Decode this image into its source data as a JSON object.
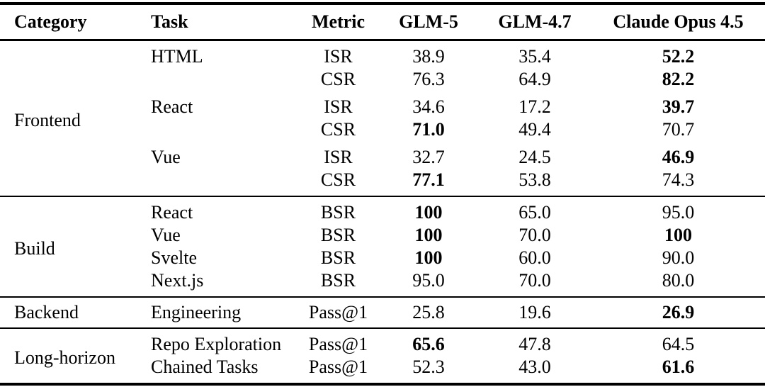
{
  "table": {
    "headers": {
      "category": "Category",
      "task": "Task",
      "metric": "Metric",
      "glm5": "GLM-5",
      "glm47": "GLM-4.7",
      "opus": "Claude Opus 4.5"
    },
    "sections": [
      {
        "category": "Frontend",
        "tasks": [
          {
            "name": "HTML",
            "rows": [
              {
                "metric": "ISR",
                "glm5": {
                  "v": "38.9",
                  "b": false
                },
                "glm47": {
                  "v": "35.4",
                  "b": false
                },
                "opus": {
                  "v": "52.2",
                  "b": true
                }
              },
              {
                "metric": "CSR",
                "glm5": {
                  "v": "76.3",
                  "b": false
                },
                "glm47": {
                  "v": "64.9",
                  "b": false
                },
                "opus": {
                  "v": "82.2",
                  "b": true
                }
              }
            ]
          },
          {
            "name": "React",
            "rows": [
              {
                "metric": "ISR",
                "glm5": {
                  "v": "34.6",
                  "b": false
                },
                "glm47": {
                  "v": "17.2",
                  "b": false
                },
                "opus": {
                  "v": "39.7",
                  "b": true
                }
              },
              {
                "metric": "CSR",
                "glm5": {
                  "v": "71.0",
                  "b": true
                },
                "glm47": {
                  "v": "49.4",
                  "b": false
                },
                "opus": {
                  "v": "70.7",
                  "b": false
                }
              }
            ]
          },
          {
            "name": "Vue",
            "rows": [
              {
                "metric": "ISR",
                "glm5": {
                  "v": "32.7",
                  "b": false
                },
                "glm47": {
                  "v": "24.5",
                  "b": false
                },
                "opus": {
                  "v": "46.9",
                  "b": true
                }
              },
              {
                "metric": "CSR",
                "glm5": {
                  "v": "77.1",
                  "b": true
                },
                "glm47": {
                  "v": "53.8",
                  "b": false
                },
                "opus": {
                  "v": "74.3",
                  "b": false
                }
              }
            ]
          }
        ]
      },
      {
        "category": "Build",
        "tasks": [
          {
            "name": "React",
            "rows": [
              {
                "metric": "BSR",
                "glm5": {
                  "v": "100",
                  "b": true
                },
                "glm47": {
                  "v": "65.0",
                  "b": false
                },
                "opus": {
                  "v": "95.0",
                  "b": false
                }
              }
            ]
          },
          {
            "name": "Vue",
            "rows": [
              {
                "metric": "BSR",
                "glm5": {
                  "v": "100",
                  "b": true
                },
                "glm47": {
                  "v": "70.0",
                  "b": false
                },
                "opus": {
                  "v": "100",
                  "b": true
                }
              }
            ]
          },
          {
            "name": "Svelte",
            "rows": [
              {
                "metric": "BSR",
                "glm5": {
                  "v": "100",
                  "b": true
                },
                "glm47": {
                  "v": "60.0",
                  "b": false
                },
                "opus": {
                  "v": "90.0",
                  "b": false
                }
              }
            ]
          },
          {
            "name": "Next.js",
            "rows": [
              {
                "metric": "BSR",
                "glm5": {
                  "v": "95.0",
                  "b": false
                },
                "glm47": {
                  "v": "70.0",
                  "b": false
                },
                "opus": {
                  "v": "80.0",
                  "b": false
                }
              }
            ]
          }
        ]
      },
      {
        "category": "Backend",
        "tasks": [
          {
            "name": "Engineering",
            "rows": [
              {
                "metric": "Pass@1",
                "glm5": {
                  "v": "25.8",
                  "b": false
                },
                "glm47": {
                  "v": "19.6",
                  "b": false
                },
                "opus": {
                  "v": "26.9",
                  "b": true
                }
              }
            ]
          }
        ]
      },
      {
        "category": "Long-horizon",
        "tasks": [
          {
            "name": "Repo Exploration",
            "rows": [
              {
                "metric": "Pass@1",
                "glm5": {
                  "v": "65.6",
                  "b": true
                },
                "glm47": {
                  "v": "47.8",
                  "b": false
                },
                "opus": {
                  "v": "64.5",
                  "b": false
                }
              }
            ]
          },
          {
            "name": "Chained Tasks",
            "rows": [
              {
                "metric": "Pass@1",
                "glm5": {
                  "v": "52.3",
                  "b": false
                },
                "glm47": {
                  "v": "43.0",
                  "b": false
                },
                "opus": {
                  "v": "61.6",
                  "b": true
                }
              }
            ]
          }
        ]
      }
    ]
  }
}
